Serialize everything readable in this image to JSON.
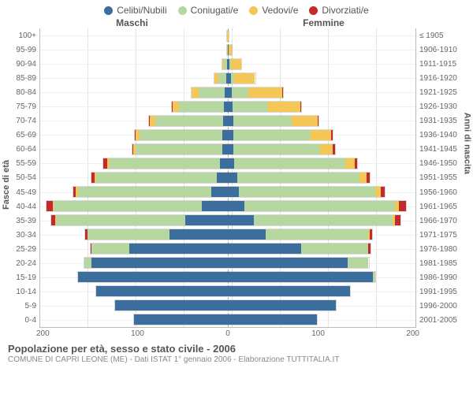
{
  "legend": [
    {
      "label": "Celibi/Nubili",
      "color": "#3b6e9c"
    },
    {
      "label": "Coniugati/e",
      "color": "#b6d7a0"
    },
    {
      "label": "Vedovi/e",
      "color": "#f4c757"
    },
    {
      "label": "Divorziati/e",
      "color": "#c22b2b"
    }
  ],
  "headers": {
    "male": "Maschi",
    "female": "Femmine"
  },
  "axis_titles": {
    "left": "Fasce di età",
    "right": "Anni di nascita"
  },
  "x_axis": {
    "max": 200,
    "ticks": [
      200,
      100,
      0,
      100,
      200
    ]
  },
  "colors": {
    "celibi": "#3b6e9c",
    "coniugati": "#b6d7a0",
    "vedovi": "#f4c757",
    "divorziati": "#c22b2b",
    "grid": "#e0e0e0",
    "background": "#ffffff"
  },
  "rows": [
    {
      "age": "100+",
      "birth": "≤ 1905",
      "m": {
        "c": 0,
        "k": 0,
        "v": 1,
        "d": 0
      },
      "f": {
        "c": 0,
        "k": 0,
        "v": 1,
        "d": 0
      }
    },
    {
      "age": "95-99",
      "birth": "1906-1910",
      "m": {
        "c": 0,
        "k": 0,
        "v": 1,
        "d": 0
      },
      "f": {
        "c": 1,
        "k": 0,
        "v": 3,
        "d": 0
      }
    },
    {
      "age": "90-94",
      "birth": "1911-1915",
      "m": {
        "c": 1,
        "k": 3,
        "v": 2,
        "d": 0
      },
      "f": {
        "c": 2,
        "k": 1,
        "v": 11,
        "d": 0
      }
    },
    {
      "age": "85-89",
      "birth": "1916-1920",
      "m": {
        "c": 2,
        "k": 8,
        "v": 4,
        "d": 0
      },
      "f": {
        "c": 3,
        "k": 4,
        "v": 22,
        "d": 0
      }
    },
    {
      "age": "80-84",
      "birth": "1921-1925",
      "m": {
        "c": 3,
        "k": 28,
        "v": 8,
        "d": 0
      },
      "f": {
        "c": 4,
        "k": 18,
        "v": 36,
        "d": 1
      }
    },
    {
      "age": "75-79",
      "birth": "1926-1930",
      "m": {
        "c": 4,
        "k": 48,
        "v": 7,
        "d": 1
      },
      "f": {
        "c": 5,
        "k": 38,
        "v": 34,
        "d": 1
      }
    },
    {
      "age": "70-74",
      "birth": "1931-1935",
      "m": {
        "c": 5,
        "k": 72,
        "v": 6,
        "d": 1
      },
      "f": {
        "c": 6,
        "k": 62,
        "v": 28,
        "d": 1
      }
    },
    {
      "age": "65-69",
      "birth": "1936-1940",
      "m": {
        "c": 6,
        "k": 88,
        "v": 4,
        "d": 1
      },
      "f": {
        "c": 6,
        "k": 82,
        "v": 22,
        "d": 2
      }
    },
    {
      "age": "60-64",
      "birth": "1941-1945",
      "m": {
        "c": 6,
        "k": 92,
        "v": 3,
        "d": 1
      },
      "f": {
        "c": 6,
        "k": 92,
        "v": 14,
        "d": 2
      }
    },
    {
      "age": "55-59",
      "birth": "1946-1950",
      "m": {
        "c": 8,
        "k": 118,
        "v": 3,
        "d": 4
      },
      "f": {
        "c": 7,
        "k": 118,
        "v": 10,
        "d": 3
      }
    },
    {
      "age": "50-54",
      "birth": "1951-1955",
      "m": {
        "c": 12,
        "k": 128,
        "v": 2,
        "d": 3
      },
      "f": {
        "c": 10,
        "k": 130,
        "v": 8,
        "d": 3
      }
    },
    {
      "age": "45-49",
      "birth": "1956-1960",
      "m": {
        "c": 18,
        "k": 142,
        "v": 2,
        "d": 3
      },
      "f": {
        "c": 12,
        "k": 145,
        "v": 6,
        "d": 4
      }
    },
    {
      "age": "40-44",
      "birth": "1961-1965",
      "m": {
        "c": 28,
        "k": 158,
        "v": 1,
        "d": 6
      },
      "f": {
        "c": 18,
        "k": 160,
        "v": 4,
        "d": 8
      }
    },
    {
      "age": "35-39",
      "birth": "1966-1970",
      "m": {
        "c": 45,
        "k": 138,
        "v": 1,
        "d": 4
      },
      "f": {
        "c": 28,
        "k": 148,
        "v": 2,
        "d": 6
      }
    },
    {
      "age": "30-34",
      "birth": "1971-1975",
      "m": {
        "c": 62,
        "k": 88,
        "v": 0,
        "d": 2
      },
      "f": {
        "c": 40,
        "k": 110,
        "v": 1,
        "d": 3
      }
    },
    {
      "age": "25-29",
      "birth": "1976-1980",
      "m": {
        "c": 105,
        "k": 40,
        "v": 0,
        "d": 1
      },
      "f": {
        "c": 78,
        "k": 72,
        "v": 0,
        "d": 2
      }
    },
    {
      "age": "20-24",
      "birth": "1981-1985",
      "m": {
        "c": 145,
        "k": 8,
        "v": 0,
        "d": 0
      },
      "f": {
        "c": 128,
        "k": 22,
        "v": 0,
        "d": 0
      }
    },
    {
      "age": "15-19",
      "birth": "1986-1990",
      "m": {
        "c": 160,
        "k": 0,
        "v": 0,
        "d": 0
      },
      "f": {
        "c": 155,
        "k": 2,
        "v": 0,
        "d": 0
      }
    },
    {
      "age": "10-14",
      "birth": "1991-1995",
      "m": {
        "c": 140,
        "k": 0,
        "v": 0,
        "d": 0
      },
      "f": {
        "c": 130,
        "k": 0,
        "v": 0,
        "d": 0
      }
    },
    {
      "age": "5-9",
      "birth": "1996-2000",
      "m": {
        "c": 120,
        "k": 0,
        "v": 0,
        "d": 0
      },
      "f": {
        "c": 115,
        "k": 0,
        "v": 0,
        "d": 0
      }
    },
    {
      "age": "0-4",
      "birth": "2001-2005",
      "m": {
        "c": 100,
        "k": 0,
        "v": 0,
        "d": 0
      },
      "f": {
        "c": 95,
        "k": 0,
        "v": 0,
        "d": 0
      }
    }
  ],
  "footer": {
    "title": "Popolazione per età, sesso e stato civile - 2006",
    "subtitle": "COMUNE DI CAPRI LEONE (ME) - Dati ISTAT 1° gennaio 2006 - Elaborazione TUTTITALIA.IT"
  },
  "bar_style": {
    "height_pct": 72
  }
}
